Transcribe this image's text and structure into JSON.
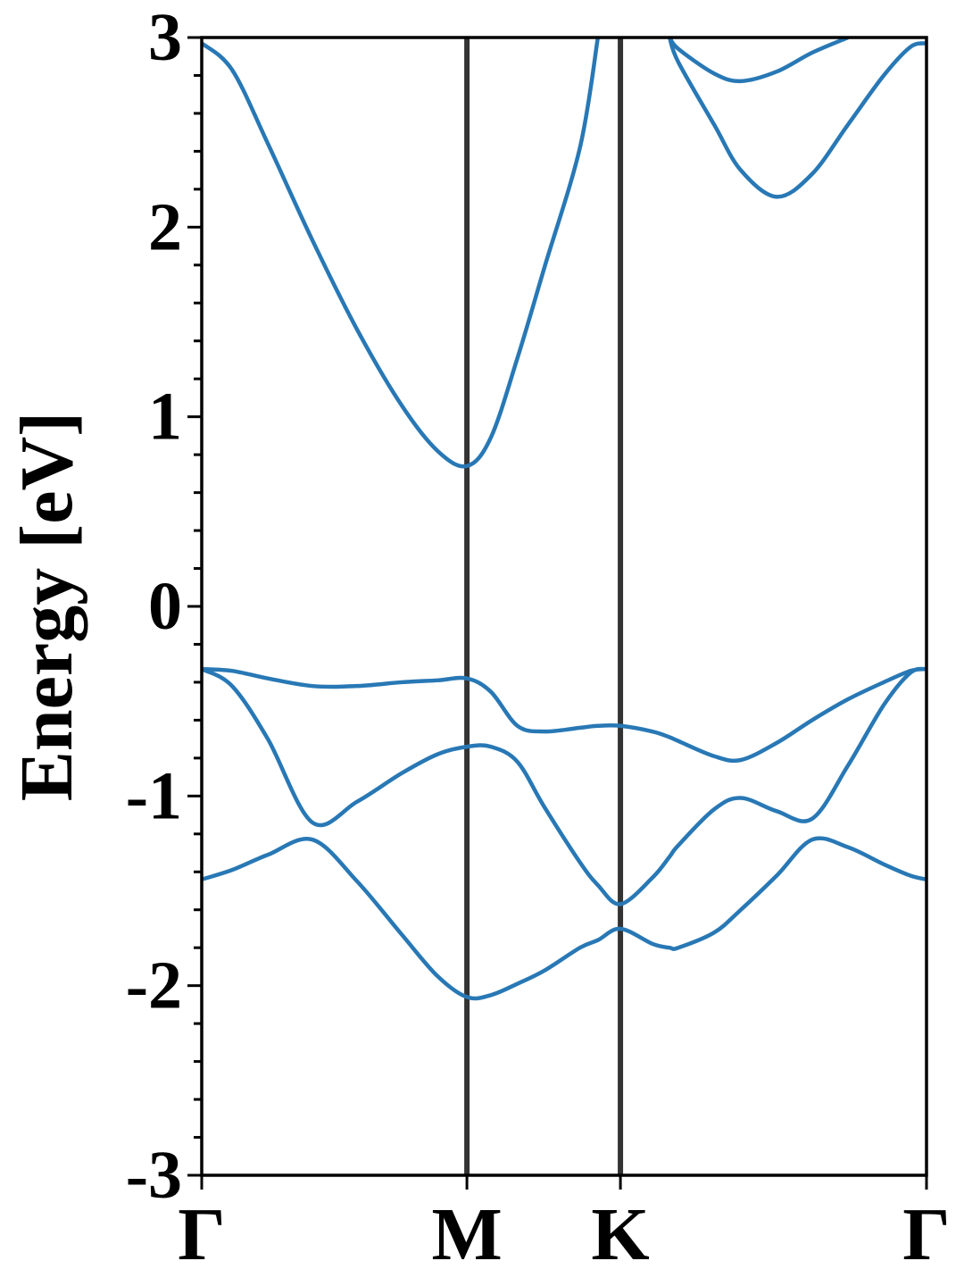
{
  "chart_data": {
    "type": "line",
    "y_label": "Energy [eV]",
    "x": [
      0,
      0.066,
      0.144,
      0.241,
      0.338,
      0.435,
      0.513,
      0.577,
      0.629,
      0.687,
      0.746,
      0.823,
      0.862,
      0.911,
      0.981,
      1.018,
      1.037,
      1.115,
      1.173,
      1.251,
      1.328,
      1.406,
      1.484,
      1.542,
      1.577
    ],
    "series": [
      {
        "name": "band 1",
        "color": "#2878b5",
        "values": [
          -1.44,
          -1.39,
          -1.31,
          -1.23,
          -1.45,
          -1.73,
          -1.95,
          -2.06,
          -2.05,
          -1.99,
          -1.92,
          -1.8,
          -1.76,
          -1.7,
          -1.78,
          -1.8,
          -1.8,
          -1.72,
          -1.6,
          -1.42,
          -1.23,
          -1.27,
          -1.36,
          -1.42,
          -1.44
        ]
      },
      {
        "name": "band 2",
        "color": "#2878b5",
        "values": [
          -0.33,
          -0.42,
          -0.7,
          -1.14,
          -1.03,
          -0.88,
          -0.78,
          -0.74,
          -0.74,
          -0.82,
          -1.06,
          -1.35,
          -1.47,
          -1.57,
          -1.43,
          -1.32,
          -1.26,
          -1.07,
          -1.01,
          -1.08,
          -1.12,
          -0.84,
          -0.52,
          -0.35,
          -0.33
        ]
      },
      {
        "name": "band 3",
        "color": "#2878b5",
        "values": [
          -0.33,
          -0.34,
          -0.38,
          -0.42,
          -0.42,
          -0.4,
          -0.39,
          -0.38,
          -0.45,
          -0.63,
          -0.66,
          -0.64,
          -0.63,
          -0.63,
          -0.66,
          -0.69,
          -0.71,
          -0.79,
          -0.81,
          -0.72,
          -0.6,
          -0.49,
          -0.4,
          -0.34,
          -0.33
        ]
      },
      {
        "name": "band 4",
        "color": "#2878b5",
        "values": [
          2.97,
          2.83,
          2.44,
          1.93,
          1.46,
          1.06,
          0.82,
          0.74,
          0.89,
          1.31,
          1.79,
          2.42,
          3.0,
          null,
          null,
          3.0,
          2.87,
          2.54,
          2.3,
          2.16,
          2.28,
          2.54,
          2.8,
          2.95,
          2.97
        ]
      },
      {
        "name": "band 5",
        "color": "#2878b5",
        "values": [
          null,
          null,
          null,
          null,
          null,
          null,
          null,
          null,
          null,
          null,
          null,
          null,
          null,
          null,
          null,
          3.0,
          2.94,
          2.81,
          2.77,
          2.82,
          2.92,
          3.0,
          null,
          null,
          null
        ]
      }
    ],
    "xlim": [
      0,
      1.577
    ],
    "xticks": [
      {
        "value": 0,
        "label": "Γ"
      },
      {
        "value": 0.577,
        "label": "M"
      },
      {
        "value": 0.911,
        "label": "K"
      },
      {
        "value": 1.577,
        "label": "Γ"
      }
    ],
    "ylim": [
      -3,
      3
    ],
    "yticks": [
      -3,
      -2,
      -1,
      0,
      1,
      2,
      3
    ],
    "yminorticks": [
      -2.8,
      -2.6,
      -2.4,
      -2.2,
      -1.8,
      -1.6,
      -1.4,
      -1.2,
      -0.8,
      -0.6,
      -0.4,
      -0.2,
      0.2,
      0.4,
      0.6,
      0.8,
      1.2,
      1.4,
      1.6,
      1.8,
      2.2,
      2.4,
      2.6,
      2.8
    ],
    "vline_color": "#333333"
  }
}
